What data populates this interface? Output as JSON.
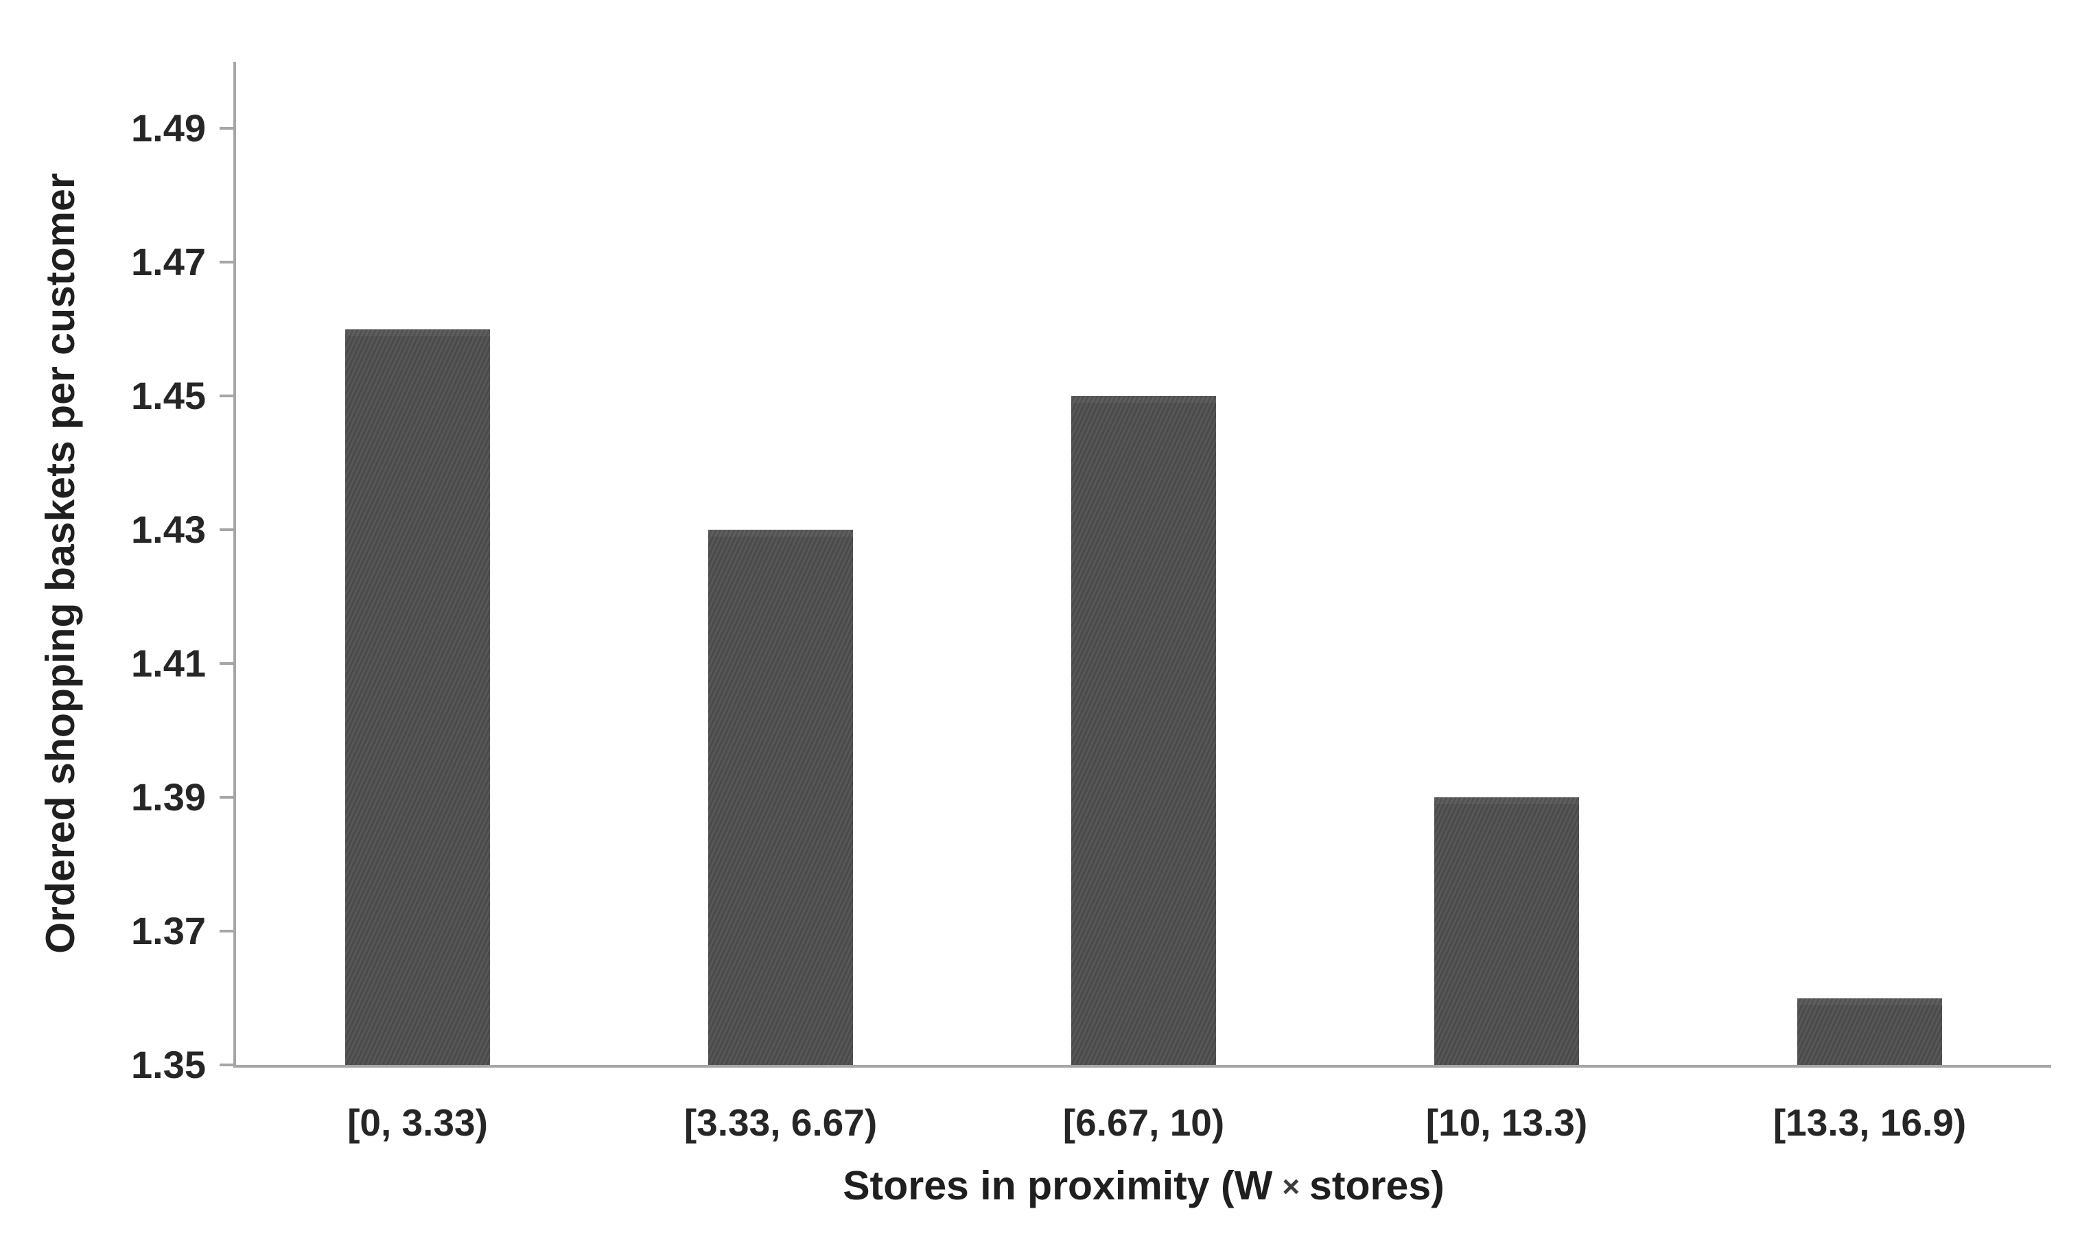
{
  "chart_data": {
    "type": "bar",
    "title": "",
    "categories": [
      "[0, 3.33)",
      "[3.33, 6.67)",
      "[6.67, 10)",
      "[10, 13.3)",
      "[13.3, 16.9)"
    ],
    "values": [
      1.46,
      1.43,
      1.45,
      1.39,
      1.36
    ],
    "yticks": [
      "1.35",
      "1.37",
      "1.39",
      "1.41",
      "1.43",
      "1.45",
      "1.47",
      "1.49"
    ],
    "ylim": [
      1.35,
      1.5
    ],
    "ylabel": "Ordered shopping baskets per customer",
    "xlabel": "Stores in proximity (W × stores)",
    "xlabel_parts": {
      "prefix": "Stores in proximity (W",
      "times": "×",
      "suffix": "stores)"
    },
    "legend": "none",
    "grid": false,
    "bar_color": "#515151",
    "axis_color": "#a6a6a6",
    "text_color": "#262626"
  }
}
